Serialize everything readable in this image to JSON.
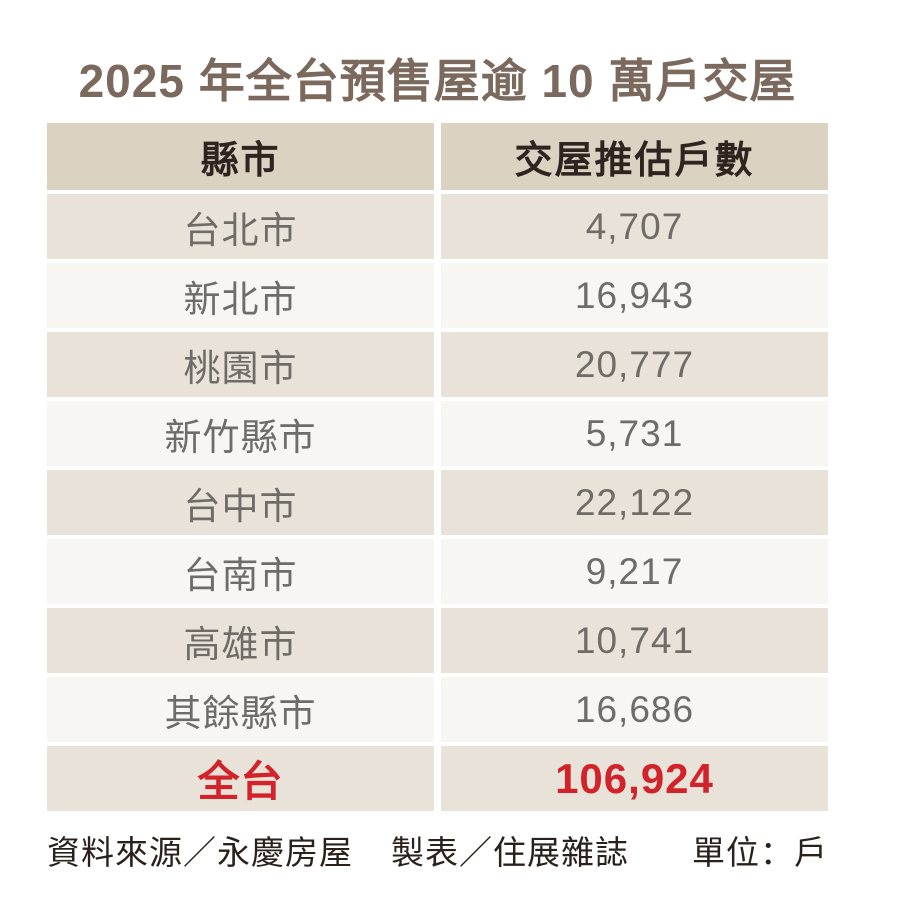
{
  "title": "2025 年全台預售屋逾 10 萬戶交屋",
  "table": {
    "headers": [
      "縣市",
      "交屋推估戶數"
    ],
    "rows": [
      {
        "region": "台北市",
        "value": "4,707",
        "highlight": false
      },
      {
        "region": "新北市",
        "value": "16,943",
        "highlight": false
      },
      {
        "region": "桃園市",
        "value": "20,777",
        "highlight": false
      },
      {
        "region": "新竹縣市",
        "value": "5,731",
        "highlight": false
      },
      {
        "region": "台中市",
        "value": "22,122",
        "highlight": false
      },
      {
        "region": "台南市",
        "value": "9,217",
        "highlight": false
      },
      {
        "region": "高雄市",
        "value": "10,741",
        "highlight": false
      },
      {
        "region": "其餘縣市",
        "value": "16,686",
        "highlight": false
      },
      {
        "region": "全台",
        "value": "106,924",
        "highlight": true
      }
    ]
  },
  "footer": {
    "source": "資料來源／永慶房屋",
    "maker": "製表／住展雜誌",
    "unit": "單位：戶"
  },
  "colors": {
    "title_brown": "#7a695c",
    "header_bg": "#dcd2c2",
    "row_beige": "#e8e2d8",
    "row_light": "#f7f6f2",
    "header_text": "#2e2521",
    "cell_text": "#6f6b66",
    "accent_red": "#d2232a",
    "footer_text": "#2a211c"
  },
  "chart_data": {
    "type": "table",
    "title": "2025 年全台預售屋逾 10 萬戶交屋",
    "columns": [
      "縣市",
      "交屋推估戶數"
    ],
    "categories": [
      "台北市",
      "新北市",
      "桃園市",
      "新竹縣市",
      "台中市",
      "台南市",
      "高雄市",
      "其餘縣市",
      "全台"
    ],
    "values": [
      4707,
      16943,
      20777,
      5731,
      22122,
      9217,
      10741,
      16686,
      106924
    ],
    "unit": "戶",
    "source": "永慶房屋",
    "maker": "住展雜誌"
  }
}
